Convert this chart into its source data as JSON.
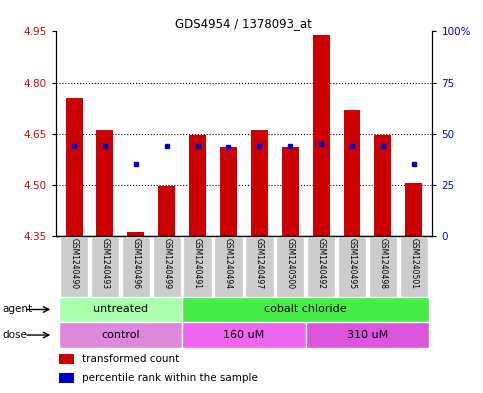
{
  "title": "GDS4954 / 1378093_at",
  "samples": [
    "GSM1240490",
    "GSM1240493",
    "GSM1240496",
    "GSM1240499",
    "GSM1240491",
    "GSM1240494",
    "GSM1240497",
    "GSM1240500",
    "GSM1240492",
    "GSM1240495",
    "GSM1240498",
    "GSM1240501"
  ],
  "bar_values": [
    4.755,
    4.66,
    4.36,
    4.495,
    4.645,
    4.61,
    4.66,
    4.61,
    4.94,
    4.72,
    4.645,
    4.505
  ],
  "blue_dot_values": [
    4.615,
    4.615,
    4.56,
    4.615,
    4.615,
    4.61,
    4.615,
    4.615,
    4.62,
    4.615,
    4.615,
    4.56
  ],
  "ymin": 4.35,
  "ymax": 4.95,
  "yticks_left": [
    4.35,
    4.5,
    4.65,
    4.8,
    4.95
  ],
  "yticks_right": [
    0,
    25,
    50,
    75,
    100
  ],
  "bar_color": "#cc0000",
  "blue_color": "#0000cc",
  "agent_groups": [
    {
      "label": "untreated",
      "start": 0,
      "end": 4,
      "color": "#aaffaa"
    },
    {
      "label": "cobalt chloride",
      "start": 4,
      "end": 12,
      "color": "#44ee44"
    }
  ],
  "dose_groups": [
    {
      "label": "control",
      "start": 0,
      "end": 4,
      "color": "#dd88dd"
    },
    {
      "label": "160 uM",
      "start": 4,
      "end": 8,
      "color": "#ee66ee"
    },
    {
      "label": "310 uM",
      "start": 8,
      "end": 12,
      "color": "#dd55dd"
    }
  ],
  "legend_items": [
    {
      "label": "transformed count",
      "color": "#cc0000"
    },
    {
      "label": "percentile rank within the sample",
      "color": "#0000cc"
    }
  ],
  "xlabel_agent": "agent",
  "xlabel_dose": "dose",
  "bar_width": 0.55,
  "label_box_color": "#cccccc",
  "grid_linestyle": "dotted",
  "grid_color": "#000000"
}
